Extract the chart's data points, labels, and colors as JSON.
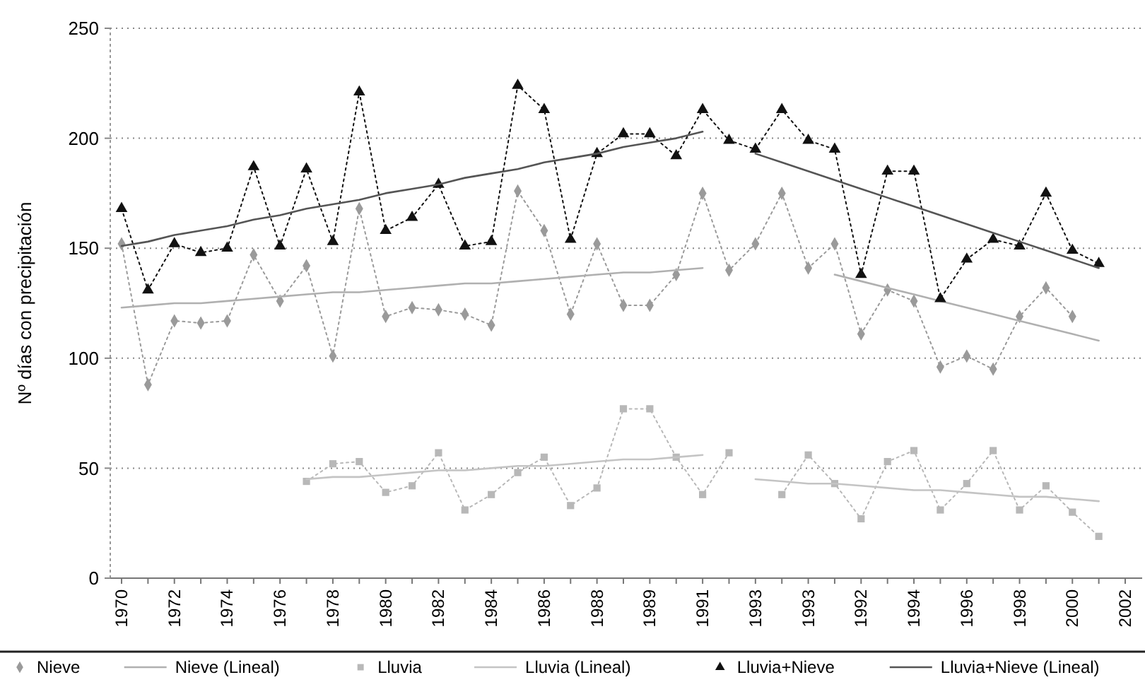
{
  "chart_data": {
    "type": "line",
    "ylabel": "Nº días con precipitación",
    "categories": [
      "1970",
      null,
      "1972",
      null,
      "1974",
      null,
      "1976",
      null,
      "1978",
      null,
      "1980",
      null,
      "1982",
      null,
      "1984",
      null,
      "1986",
      null,
      "1988",
      null,
      "1989",
      null,
      "1991",
      null,
      "1993",
      null,
      "1993",
      null,
      "1992",
      null,
      "1994",
      null,
      "1996",
      null,
      "1998",
      null,
      "2000",
      null,
      "2002"
    ],
    "ylim": [
      0,
      250
    ],
    "yticks": [
      0,
      50,
      100,
      150,
      200,
      250
    ],
    "grid": "y",
    "legend": "bottom",
    "series": [
      {
        "name": "Nieve",
        "marker": "diamond",
        "line_style": "dotted",
        "color": "#9a9a9a",
        "values": [
          152,
          88,
          117,
          116,
          117,
          147,
          126,
          142,
          101,
          168,
          119,
          123,
          122,
          120,
          115,
          176,
          158,
          120,
          152,
          124,
          124,
          138,
          175,
          140,
          152,
          175,
          141,
          152,
          111,
          131,
          126,
          96,
          101,
          95,
          119,
          132,
          119,
          null,
          null
        ]
      },
      {
        "name": "Nieve (Lineal)",
        "marker": "none",
        "line_style": "solid",
        "color": "#b0b0b0",
        "values": [
          123,
          124,
          125,
          125,
          126,
          127,
          128,
          129,
          130,
          130,
          131,
          132,
          133,
          134,
          134,
          135,
          136,
          137,
          138,
          139,
          139,
          140,
          141,
          null,
          null,
          null,
          null,
          138,
          135,
          132,
          129,
          126,
          123,
          120,
          117,
          114,
          111,
          108,
          null
        ]
      },
      {
        "name": "Lluvia",
        "marker": "square",
        "line_style": "dotted",
        "color": "#b8b8b8",
        "values": [
          null,
          null,
          null,
          null,
          null,
          null,
          null,
          44,
          52,
          53,
          39,
          42,
          57,
          31,
          38,
          48,
          55,
          33,
          41,
          77,
          77,
          55,
          38,
          57,
          null,
          38,
          56,
          43,
          27,
          53,
          58,
          31,
          43,
          58,
          31,
          42,
          30,
          19,
          null
        ]
      },
      {
        "name": "Lluvia (Lineal)",
        "marker": "none",
        "line_style": "solid",
        "color": "#c4c4c4",
        "values": [
          null,
          null,
          null,
          null,
          null,
          null,
          null,
          45,
          46,
          46,
          47,
          48,
          49,
          49,
          50,
          51,
          51,
          52,
          53,
          54,
          54,
          55,
          56,
          null,
          45,
          44,
          43,
          43,
          42,
          41,
          40,
          40,
          39,
          38,
          37,
          37,
          36,
          35,
          null
        ]
      },
      {
        "name": "Lluvia+Nieve",
        "marker": "triangle",
        "line_style": "dotted",
        "color": "#111111",
        "values": [
          168,
          131,
          152,
          148,
          150,
          187,
          151,
          186,
          153,
          221,
          158,
          164,
          179,
          151,
          153,
          224,
          213,
          154,
          193,
          202,
          202,
          192,
          213,
          199,
          195,
          213,
          199,
          195,
          138,
          185,
          185,
          127,
          145,
          154,
          151,
          175,
          149,
          143,
          null
        ]
      },
      {
        "name": "Lluvia+Nieve (Lineal)",
        "marker": "none",
        "line_style": "solid",
        "color": "#555555",
        "values": [
          151,
          153,
          156,
          158,
          160,
          163,
          165,
          168,
          170,
          172,
          175,
          177,
          179,
          182,
          184,
          186,
          189,
          191,
          193,
          196,
          198,
          200,
          203,
          null,
          193,
          189,
          185,
          181,
          177,
          173,
          169,
          165,
          161,
          157,
          153,
          149,
          145,
          141,
          null
        ]
      }
    ]
  }
}
